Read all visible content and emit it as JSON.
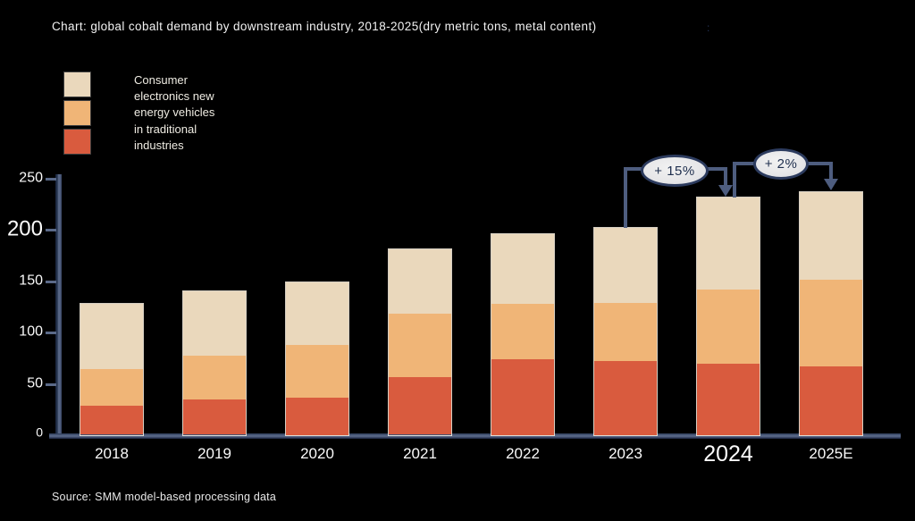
{
  "title": "Chart: global cobalt demand by downstream industry, 2018-2025(dry metric tons, metal content)",
  "title_mark": ":",
  "source": "Source: SMM model-based processing data",
  "legend": {
    "lines": [
      "Consumer",
      "electronics new",
      "energy vehicles",
      "in traditional",
      "industries"
    ],
    "swatch_colors": [
      "#ead8bc",
      "#f0b577",
      "#d95b3e"
    ]
  },
  "colors": {
    "background": "#000000",
    "axis": "#4e5d7f",
    "consumer_electronics": "#ead8bc",
    "new_energy_vehicles": "#f0b577",
    "traditional_industries": "#d95b3e",
    "annotation_fill": "#e8e8e8",
    "annotation_border": "#2c3b5e"
  },
  "chart_data": {
    "type": "bar",
    "stacked": true,
    "title": "Chart: global cobalt demand by downstream industry, 2018-2025(dry metric tons, metal content)",
    "xlabel": "",
    "ylabel": "",
    "ylim": [
      0,
      250
    ],
    "yticks": [
      0,
      50,
      100,
      150,
      200,
      250
    ],
    "grid": false,
    "legend_position": "top-left",
    "categories": [
      "2018",
      "2019",
      "2020",
      "2021",
      "2022",
      "2023",
      "2024",
      "2025E"
    ],
    "series": [
      {
        "name": "in traditional industries",
        "color": "#d95b3e",
        "values": [
          28,
          34,
          37,
          56,
          74,
          72,
          70,
          67
        ]
      },
      {
        "name": "new energy vehicles",
        "color": "#f0b577",
        "values": [
          36,
          43,
          51,
          62,
          54,
          57,
          72,
          85
        ]
      },
      {
        "name": "Consumer electronics",
        "color": "#ead8bc",
        "values": [
          64,
          63,
          61,
          63,
          68,
          73,
          90,
          85
        ]
      }
    ],
    "totals": [
      128,
      140,
      149,
      181,
      196,
      202,
      232,
      237
    ],
    "emphasized_labels": [
      "200",
      "2024"
    ],
    "annotations": [
      {
        "label": "+ 15%",
        "from": "2023",
        "to": "2024"
      },
      {
        "label": "+ 2%",
        "from": "2024",
        "to": "2025E"
      }
    ]
  }
}
